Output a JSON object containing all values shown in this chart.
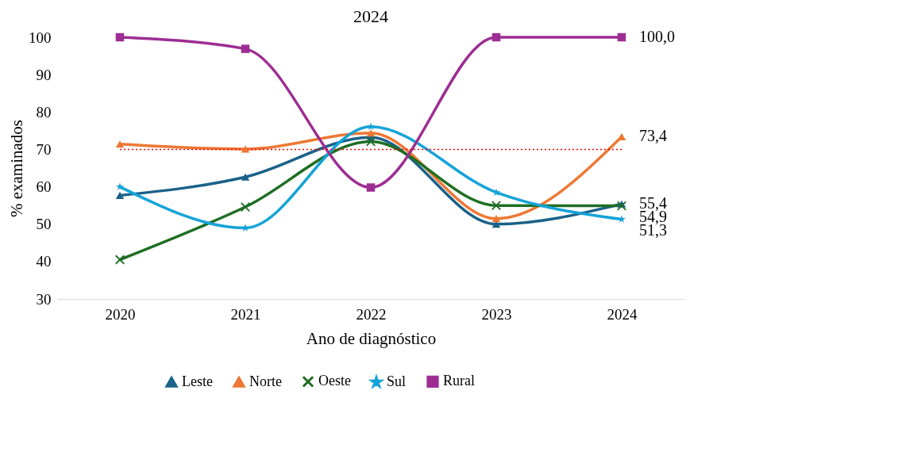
{
  "chart_data": {
    "type": "line",
    "title": "2024",
    "xlabel": "Ano de diagnóstico",
    "ylabel": "% examinados",
    "categories": [
      "2020",
      "2021",
      "2022",
      "2023",
      "2024"
    ],
    "series": [
      {
        "name": "Leste",
        "color": "#1a6289",
        "marker": "triangle",
        "values": [
          57.7,
          62.6,
          73.2,
          50.0,
          55.4
        ],
        "value_labels": [
          null,
          null,
          null,
          null,
          "55,4"
        ]
      },
      {
        "name": "Norte",
        "color": "#ed7834",
        "marker": "triangle",
        "values": [
          71.4,
          70.1,
          74.4,
          51.5,
          73.4
        ],
        "value_labels": [
          null,
          null,
          null,
          null,
          "73,4"
        ]
      },
      {
        "name": "Oeste",
        "color": "#1e6e23",
        "marker": "cross",
        "values": [
          40.5,
          54.6,
          72.1,
          55.0,
          54.9
        ],
        "value_labels": [
          null,
          null,
          null,
          null,
          "54,9"
        ]
      },
      {
        "name": "Sul",
        "color": "#14a3d9",
        "marker": "star",
        "values": [
          60.0,
          49.0,
          76.1,
          58.5,
          51.3
        ],
        "value_labels": [
          null,
          null,
          null,
          null,
          "51,3"
        ]
      },
      {
        "name": "Rural",
        "color": "#9d2d92",
        "marker": "square",
        "values": [
          100.0,
          96.9,
          59.8,
          100.0,
          100.0
        ],
        "value_labels": [
          null,
          null,
          null,
          null,
          "100,0"
        ]
      }
    ],
    "ylim": [
      30,
      100
    ],
    "yticks": [
      30,
      40,
      50,
      60,
      70,
      80,
      90,
      100
    ],
    "ref_lines": [
      {
        "axis": "y",
        "value": 70,
        "color": "#ff0000",
        "line_style": "dotted"
      }
    ],
    "grid": false,
    "legend": "bottom",
    "line_style": "solid"
  }
}
